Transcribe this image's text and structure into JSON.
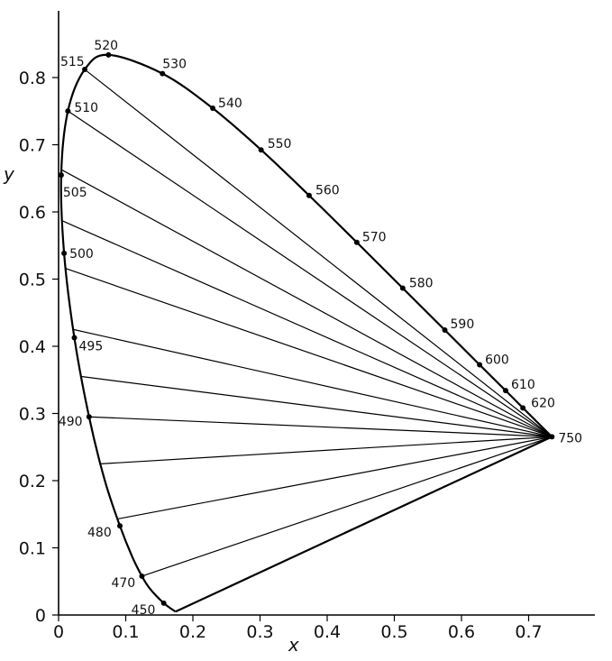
{
  "chart_data": {
    "type": "line",
    "title": "",
    "xlabel": "x",
    "ylabel": "y",
    "xlim": [
      0,
      0.8
    ],
    "ylim": [
      0,
      0.9
    ],
    "x_ticks": [
      "0",
      "0.1",
      "0.2",
      "0.3",
      "0.4",
      "0.5",
      "0.6",
      "0.7"
    ],
    "y_ticks": [
      "0",
      "0.1",
      "0.2",
      "0.3",
      "0.4",
      "0.5",
      "0.6",
      "0.7",
      "0.8"
    ],
    "spectral_locus": [
      {
        "x": 0.1741,
        "y": 0.005
      },
      {
        "x": 0.1566,
        "y": 0.0177,
        "label": "450"
      },
      {
        "x": 0.1355,
        "y": 0.0399
      },
      {
        "x": 0.1241,
        "y": 0.0578,
        "label": "470"
      },
      {
        "x": 0.1096,
        "y": 0.0868
      },
      {
        "x": 0.0913,
        "y": 0.1327,
        "label": "480"
      },
      {
        "x": 0.0687,
        "y": 0.2007
      },
      {
        "x": 0.0454,
        "y": 0.295,
        "label": "490"
      },
      {
        "x": 0.0235,
        "y": 0.4127,
        "label": "495"
      },
      {
        "x": 0.0082,
        "y": 0.5384,
        "label": "500"
      },
      {
        "x": 0.0039,
        "y": 0.6548,
        "label": "505"
      },
      {
        "x": 0.0139,
        "y": 0.7502,
        "label": "510"
      },
      {
        "x": 0.0389,
        "y": 0.812,
        "label": "515"
      },
      {
        "x": 0.0743,
        "y": 0.8338,
        "label": "520"
      },
      {
        "x": 0.1547,
        "y": 0.8059,
        "label": "530"
      },
      {
        "x": 0.2296,
        "y": 0.7543,
        "label": "540"
      },
      {
        "x": 0.3016,
        "y": 0.6923,
        "label": "550"
      },
      {
        "x": 0.3731,
        "y": 0.6245,
        "label": "560"
      },
      {
        "x": 0.4441,
        "y": 0.5547,
        "label": "570"
      },
      {
        "x": 0.5125,
        "y": 0.4866,
        "label": "580"
      },
      {
        "x": 0.5752,
        "y": 0.4242,
        "label": "590"
      },
      {
        "x": 0.627,
        "y": 0.3725,
        "label": "600"
      },
      {
        "x": 0.6658,
        "y": 0.334,
        "label": "610"
      },
      {
        "x": 0.6915,
        "y": 0.3083,
        "label": "620"
      },
      {
        "x": 0.7347,
        "y": 0.2653,
        "label": "750"
      }
    ],
    "white_point": {
      "x": 0.7347,
      "y": 0.2653
    },
    "fan_endpoints": [
      {
        "x": 0.0389,
        "y": 0.812
      },
      {
        "x": 0.0139,
        "y": 0.7502
      },
      {
        "x": 0.004,
        "y": 0.663
      },
      {
        "x": 0.005,
        "y": 0.587
      },
      {
        "x": 0.01,
        "y": 0.516
      },
      {
        "x": 0.022,
        "y": 0.425
      },
      {
        "x": 0.034,
        "y": 0.355
      },
      {
        "x": 0.0454,
        "y": 0.295
      },
      {
        "x": 0.062,
        "y": 0.225
      },
      {
        "x": 0.088,
        "y": 0.143
      },
      {
        "x": 0.1241,
        "y": 0.0578
      }
    ]
  }
}
